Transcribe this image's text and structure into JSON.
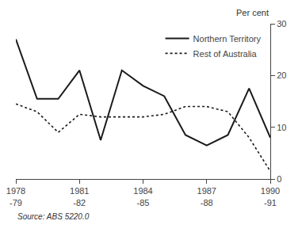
{
  "chart_data": {
    "type": "line",
    "y_label": "Per cent",
    "source": "Source: ABS 5220.0",
    "categories": [
      "1978\n-79",
      null,
      null,
      "1981\n-82",
      null,
      null,
      "1984\n-85",
      null,
      null,
      "1987\n-88",
      null,
      null,
      "1990\n-91"
    ],
    "series": [
      {
        "name": "Northern Territory",
        "color": "#1a1a1a",
        "line_style": "solid",
        "values": [
          27.0,
          15.5,
          15.5,
          21.0,
          7.5,
          21.0,
          18.0,
          16.0,
          8.5,
          6.5,
          8.5,
          17.5,
          8.0
        ]
      },
      {
        "name": "Rest of Australia",
        "color": "#1a1a1a",
        "line_style": "dotted",
        "values": [
          14.5,
          13.0,
          9.0,
          12.5,
          12.0,
          12.0,
          12.0,
          12.5,
          14.0,
          14.0,
          13.0,
          8.0,
          1.5
        ]
      }
    ],
    "ylim": [
      0,
      30
    ],
    "yticks": [
      0,
      10,
      20,
      30
    ],
    "grid": false,
    "legend": "upper right"
  }
}
